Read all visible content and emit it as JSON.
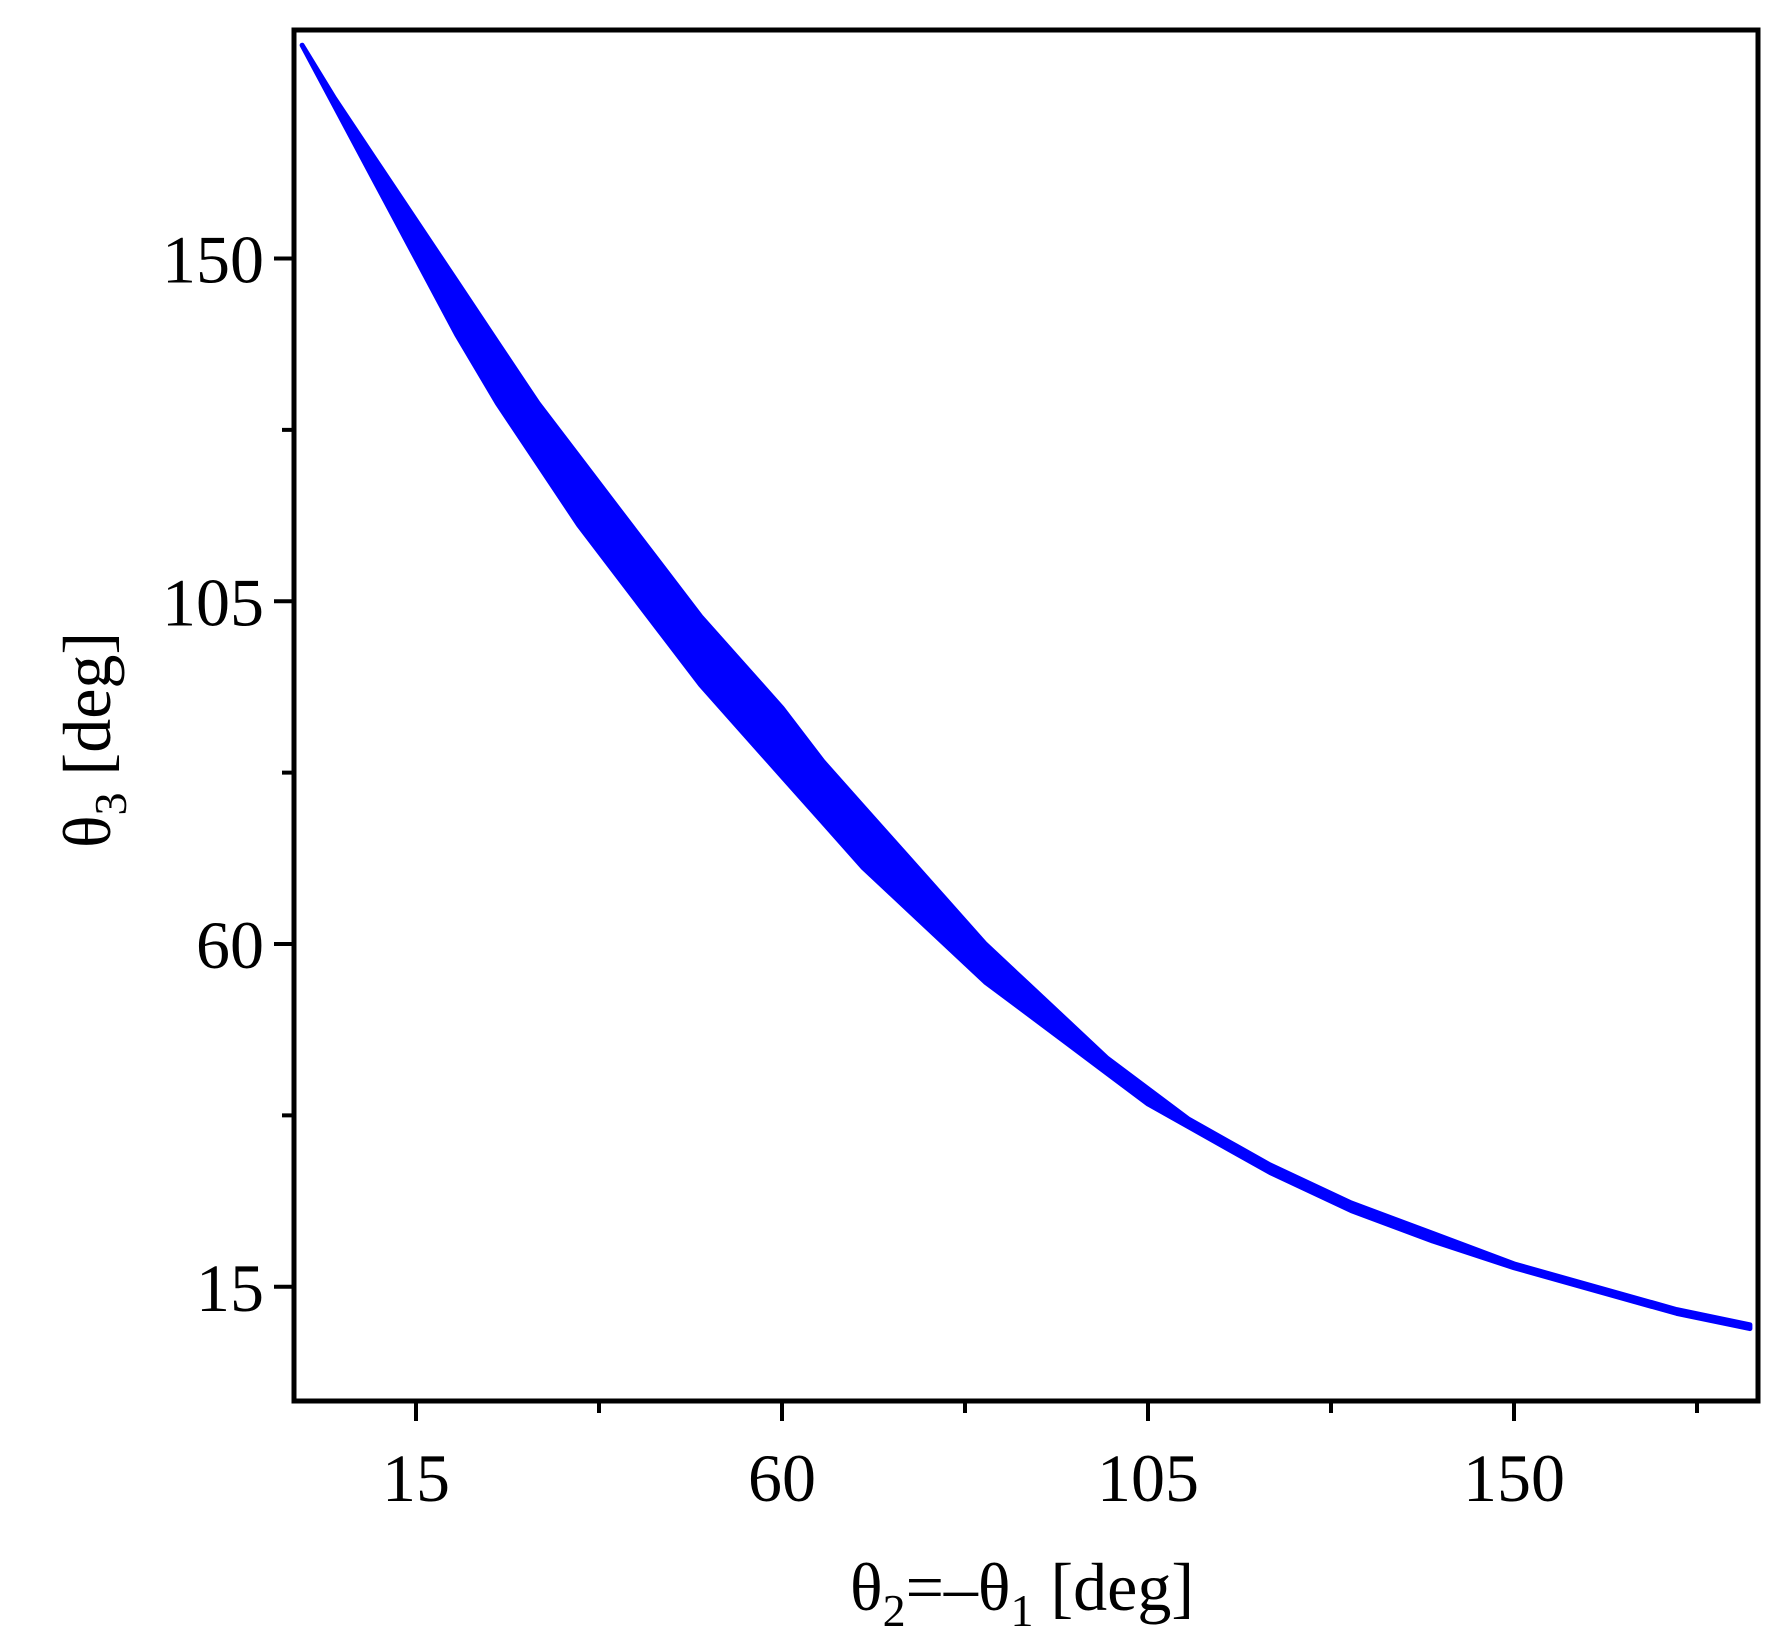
{
  "chart_data": {
    "type": "area",
    "xlabel": {
      "base": "θ",
      "sub": "2",
      "mid": "=–θ",
      "sub2": "1",
      "unit": " [deg]"
    },
    "ylabel": {
      "base": "θ",
      "sub": "3",
      "unit": " [deg]"
    },
    "xlim": [
      0,
      180
    ],
    "ylim": [
      0,
      180
    ],
    "x_ticks": [
      15,
      60,
      105,
      150
    ],
    "x_tick_labels": [
      "15",
      "60",
      "105",
      "150"
    ],
    "x_minor_ticks": [
      37.5,
      82.5,
      127.5,
      172.5
    ],
    "y_ticks": [
      15,
      60,
      105,
      150
    ],
    "y_tick_labels": [
      "15",
      "60",
      "105",
      "150"
    ],
    "y_minor_ticks": [
      37.5,
      82.5,
      127.5
    ],
    "grid": false,
    "color": "#0000ff",
    "band": {
      "x": [
        1,
        5,
        10,
        15,
        20,
        25,
        30,
        35,
        40,
        45,
        50,
        55,
        60,
        65,
        70,
        75,
        80,
        85,
        90,
        95,
        100,
        105,
        110,
        115,
        120,
        130,
        140,
        150,
        160,
        170,
        179
      ],
      "upper": [
        178,
        171,
        163,
        155,
        147,
        139,
        131,
        124,
        117,
        110,
        103,
        97,
        91,
        84,
        78,
        72,
        66,
        60,
        55,
        50,
        45,
        41,
        37,
        34,
        31,
        26,
        22,
        18,
        15,
        12,
        10
      ],
      "lower": [
        178,
        170,
        160,
        150,
        140,
        131,
        123,
        115,
        108,
        101,
        94,
        88,
        82,
        76,
        70,
        65,
        60,
        55,
        51,
        47,
        43,
        39,
        36,
        33,
        30,
        25,
        21,
        17.5,
        14.5,
        11.5,
        9.5
      ]
    }
  }
}
